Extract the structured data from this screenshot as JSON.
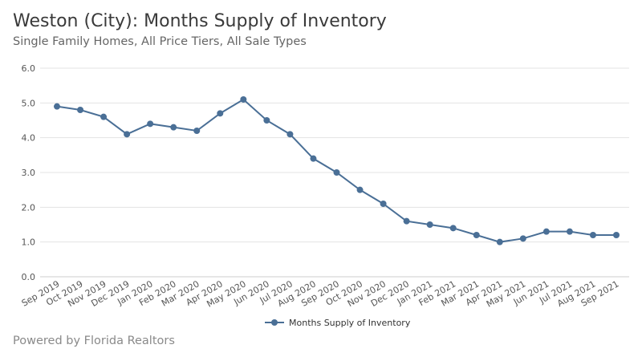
{
  "chart_data": {
    "type": "line",
    "title": "Weston (City): Months Supply of Inventory",
    "subtitle": "Single Family Homes, All Price Tiers, All Sale Types",
    "categories": [
      "Sep 2019",
      "Oct 2019",
      "Nov 2019",
      "Dec 2019",
      "Jan 2020",
      "Feb 2020",
      "Mar 2020",
      "Apr 2020",
      "May 2020",
      "Jun 2020",
      "Jul 2020",
      "Aug 2020",
      "Sep 2020",
      "Oct 2020",
      "Nov 2020",
      "Dec 2020",
      "Jan 2021",
      "Feb 2021",
      "Mar 2021",
      "Apr 2021",
      "May 2021",
      "Jun 2021",
      "Jul 2021",
      "Aug 2021",
      "Sep 2021"
    ],
    "series": [
      {
        "name": "Months Supply of Inventory",
        "values": [
          4.9,
          4.8,
          4.6,
          4.1,
          4.4,
          4.3,
          4.2,
          4.7,
          5.1,
          4.5,
          4.1,
          3.4,
          3.0,
          2.5,
          2.1,
          1.6,
          1.5,
          1.4,
          1.2,
          1.0,
          1.1,
          1.3,
          1.3,
          1.2,
          1.2
        ],
        "color": "#4a6f96"
      }
    ],
    "yticks": [
      "0.0",
      "1.0",
      "2.0",
      "3.0",
      "4.0",
      "5.0",
      "6.0"
    ],
    "ylim": [
      0,
      6
    ],
    "grid": true,
    "legend": "bottom",
    "xlabel": "",
    "ylabel": ""
  },
  "footer": "Powered by Florida Realtors"
}
